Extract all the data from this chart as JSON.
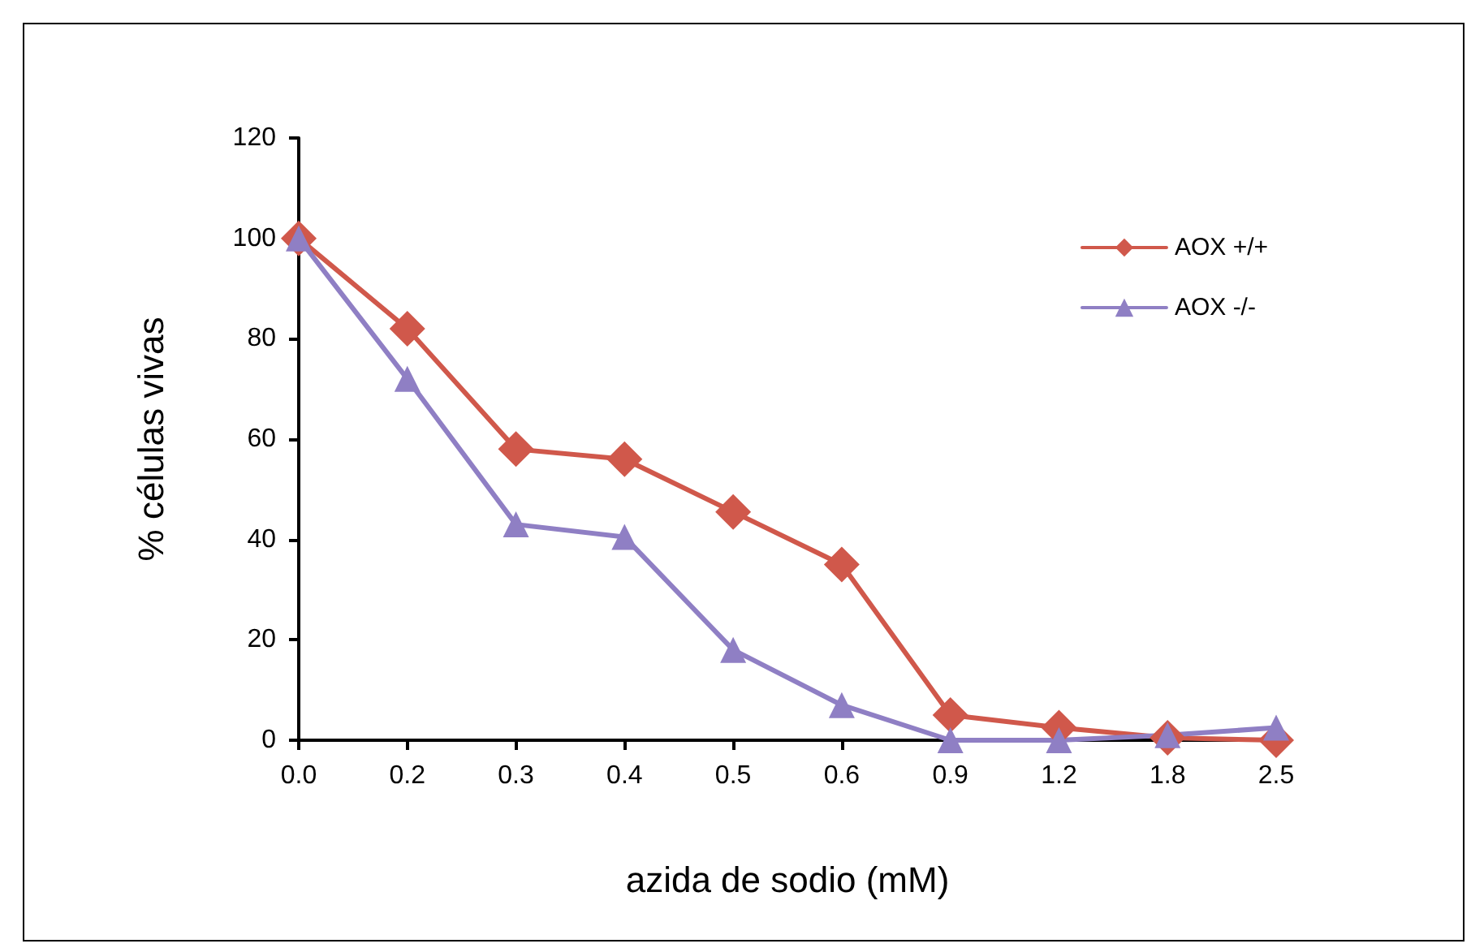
{
  "chart_data": {
    "type": "line",
    "xlabel": "azida de sodio (mM)",
    "ylabel": "% células vivas",
    "categories": [
      "0.0",
      "0.2",
      "0.3",
      "0.4",
      "0.5",
      "0.6",
      "0.9",
      "1.2",
      "1.8",
      "2.5"
    ],
    "series": [
      {
        "name": "AOX +/+",
        "color": "#d0584b",
        "marker": "diamond",
        "values": [
          100,
          82,
          58,
          56,
          45.5,
          35,
          5,
          2.5,
          0.5,
          0
        ]
      },
      {
        "name": "AOX -/-",
        "color": "#8f7fc4",
        "marker": "triangle",
        "values": [
          100,
          72,
          43,
          40.5,
          18,
          7,
          0,
          0,
          1,
          2.5
        ]
      }
    ],
    "ylim": [
      0,
      120
    ],
    "yticks": [
      0,
      20,
      40,
      60,
      80,
      100,
      120
    ],
    "grid": false,
    "legend": "top right",
    "line_style": "solid"
  }
}
